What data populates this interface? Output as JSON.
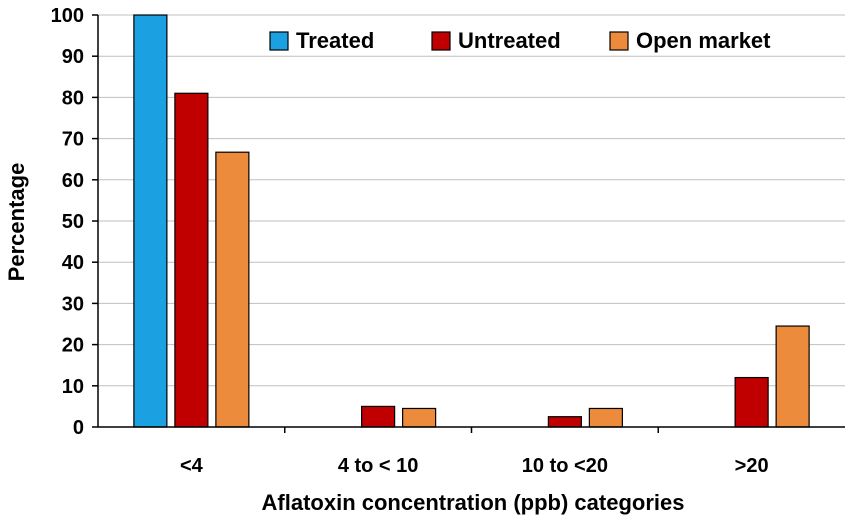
{
  "chart_data": {
    "type": "bar",
    "title": "",
    "xlabel": "Aflatoxin concentration (ppb) categories",
    "ylabel": "Percentage",
    "categories": [
      "<4",
      "4 to < 10",
      "10 to <20",
      ">20"
    ],
    "series": [
      {
        "name": "Treated",
        "color": "#1BA1E2",
        "values": [
          100,
          0,
          0,
          0
        ]
      },
      {
        "name": "Untreated",
        "color": "#C00000",
        "values": [
          81,
          5,
          2.5,
          12
        ]
      },
      {
        "name": "Open market",
        "color": "#ED8B3C",
        "values": [
          66.7,
          4.5,
          4.5,
          24.5
        ]
      }
    ],
    "ylim": [
      0,
      100
    ],
    "yticks": [
      0,
      10,
      20,
      30,
      40,
      50,
      60,
      70,
      80,
      90,
      100
    ],
    "grid": true,
    "legend_position": "top-right"
  }
}
